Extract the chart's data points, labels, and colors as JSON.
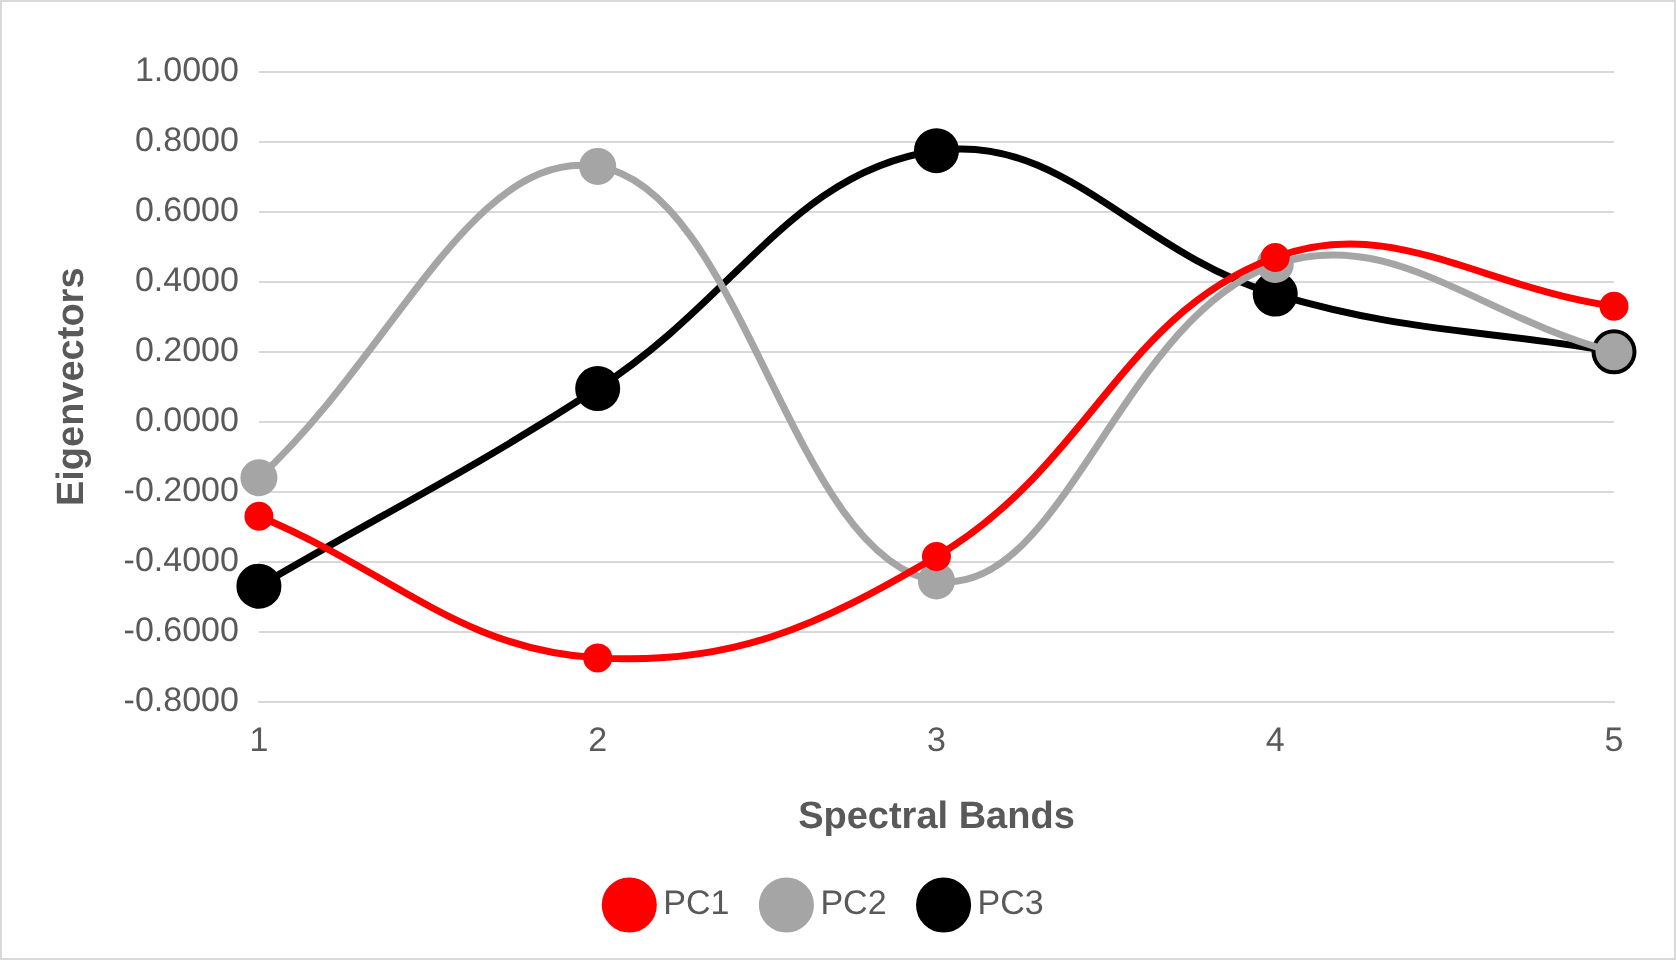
{
  "chart_data": {
    "type": "line",
    "xlabel": "Spectral Bands",
    "ylabel": "Eigenvectors",
    "categories": [
      "1",
      "2",
      "3",
      "4",
      "5"
    ],
    "series": [
      {
        "name": "PC1",
        "color": "#ff0000",
        "values": [
          -0.27,
          -0.675,
          -0.385,
          0.47,
          0.33
        ]
      },
      {
        "name": "PC2",
        "color": "#a5a5a5",
        "values": [
          -0.16,
          0.73,
          -0.455,
          0.45,
          0.2
        ]
      },
      {
        "name": "PC3",
        "color": "#000000",
        "values": [
          -0.47,
          0.095,
          0.775,
          0.365,
          0.2
        ]
      }
    ],
    "ylim": [
      -0.8,
      1
    ],
    "yticks": [
      {
        "value": -0.8,
        "label": "-0.8000"
      },
      {
        "value": -0.6,
        "label": "-0.6000"
      },
      {
        "value": -0.4,
        "label": "-0.4000"
      },
      {
        "value": -0.2,
        "label": "-0.2000"
      },
      {
        "value": 0,
        "label": "0.0000"
      },
      {
        "value": 0.2,
        "label": "0.2000"
      },
      {
        "value": 0.4,
        "label": "0.4000"
      },
      {
        "value": 0.6,
        "label": "0.6000"
      },
      {
        "value": 0.8,
        "label": "0.8000"
      },
      {
        "value": 1,
        "label": "1.0000"
      }
    ],
    "grid": "y",
    "legend": "bottom",
    "marker": "circle",
    "line_style": "solid"
  }
}
